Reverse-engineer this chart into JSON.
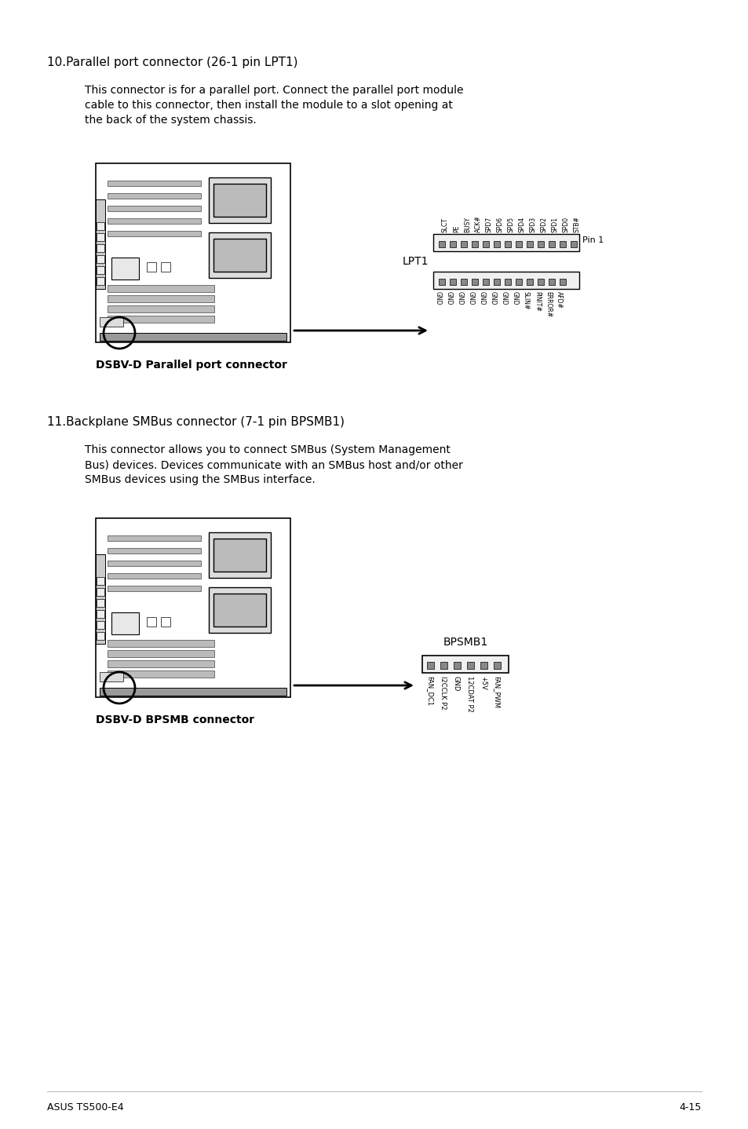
{
  "bg_color": "#ffffff",
  "text_color": "#000000",
  "page_header_left": "ASUS TS500-E4",
  "page_header_right": "4-15",
  "section1_title": "10.Parallel port connector (26-1 pin LPT1)",
  "section1_body_lines": [
    "This connector is for a parallel port. Connect the parallel port module",
    "cable to this connector, then install the module to a slot opening at",
    "the back of the system chassis."
  ],
  "section1_connector_label": "LPT1",
  "section1_pin_label": "Pin 1",
  "section1_top_pins": [
    "SLCT",
    "PE",
    "BUSY",
    "ACK#",
    "SPD7",
    "SPD6",
    "SPD5",
    "SPD4",
    "SPD3",
    "SPD2",
    "SPD1",
    "SPD0",
    "STB#"
  ],
  "section1_bot_pins": [
    "GND",
    "GND",
    "GND",
    "GND",
    "GND",
    "GND",
    "GND",
    "GND",
    "SLIN#",
    "PINIT#",
    "ERROR#",
    "AFD#"
  ],
  "section1_caption": "DSBV-D Parallel port connector",
  "section2_title": "11.Backplane SMBus connector (7-1 pin BPSMB1)",
  "section2_body_lines": [
    "This connector allows you to connect SMBus (System Management",
    "Bus) devices. Devices communicate with an SMBus host and/or other",
    "SMBus devices using the SMBus interface."
  ],
  "section2_connector_label": "BPSMB1",
  "section2_pins": [
    "FAN_DC1",
    "I2CCLK P2",
    "GND",
    "12CDAT P2",
    "+5V",
    "FAN_PWM"
  ],
  "section2_caption": "DSBV-D BPSMB connector"
}
